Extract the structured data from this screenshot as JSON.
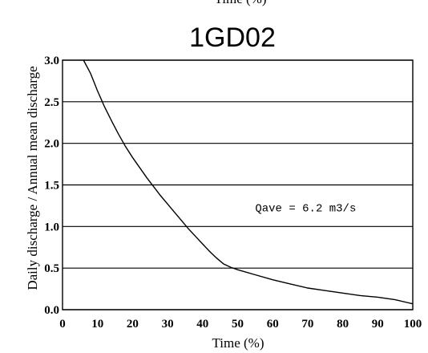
{
  "top_cut_label": "Time (%)",
  "chart_data": {
    "type": "line",
    "title": "1GD02",
    "xlabel": "Time (%)",
    "ylabel": "Daily discharge / Annual mean discharge",
    "xlim": [
      0,
      100
    ],
    "ylim": [
      0,
      3.0
    ],
    "x_ticks": [
      "0",
      "10",
      "20",
      "30",
      "40",
      "50",
      "60",
      "70",
      "80",
      "90",
      "100"
    ],
    "y_ticks": [
      "0.0",
      "0.5",
      "1.0",
      "1.5",
      "2.0",
      "2.5",
      "3.0"
    ],
    "grid": "horizontal",
    "series": [
      {
        "x": [
          6.0,
          8,
          10,
          12,
          14,
          16,
          18,
          20,
          22,
          24,
          26,
          28,
          30,
          32,
          34,
          36,
          38,
          40,
          42,
          44,
          46,
          48,
          50,
          55,
          60,
          65,
          70,
          75,
          80,
          85,
          90,
          95,
          100
        ],
        "y": [
          3.0,
          2.84,
          2.63,
          2.44,
          2.27,
          2.11,
          1.96,
          1.83,
          1.71,
          1.59,
          1.48,
          1.37,
          1.27,
          1.17,
          1.07,
          0.97,
          0.88,
          0.79,
          0.7,
          0.62,
          0.55,
          0.51,
          0.48,
          0.42,
          0.36,
          0.31,
          0.26,
          0.23,
          0.2,
          0.17,
          0.15,
          0.12,
          0.07
        ]
      }
    ],
    "annotations": [
      {
        "text": "Qave =    6.2 m3/s",
        "x": 55,
        "y": 1.18
      }
    ]
  }
}
